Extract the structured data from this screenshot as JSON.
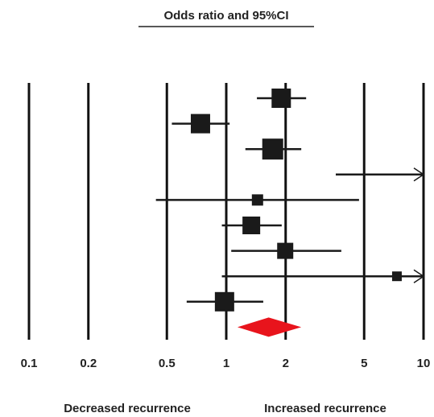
{
  "chart_data": {
    "type": "forest",
    "title": "Odds ratio and 95%CI",
    "xlabel_left": "Decreased recurrence",
    "xlabel_right": "Increased recurrence",
    "log_x": true,
    "xlim": [
      0.1,
      10
    ],
    "xticks": [
      0.1,
      0.2,
      0.5,
      1,
      2,
      5,
      10
    ],
    "estimates": [
      1.9,
      0.74,
      1.72,
      null,
      1.44,
      1.34,
      1.99,
      7.33,
      0.98
    ],
    "lower": [
      1.43,
      0.53,
      1.25,
      3.59,
      0.44,
      0.95,
      1.06,
      0.95,
      0.63
    ],
    "upper": [
      2.54,
      1.04,
      2.4,
      null,
      4.71,
      1.91,
      3.83,
      null,
      1.54
    ],
    "weights": [
      24,
      24,
      26,
      null,
      14,
      22,
      20,
      12,
      24
    ],
    "color": "#1a1a1a",
    "pooled": {
      "estimate": 1.64,
      "lower": 1.14,
      "upper": 2.4,
      "color": "#e8141c"
    }
  }
}
